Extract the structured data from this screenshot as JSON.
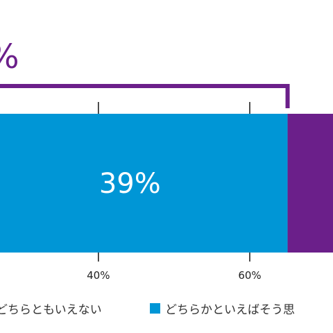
{
  "chart_data": {
    "type": "bar",
    "orientation": "horizontal-stacked",
    "xlim": [
      27,
      71
    ],
    "x_ticks": [
      {
        "value": 40,
        "label": "40%"
      },
      {
        "value": 60,
        "label": "60%"
      }
    ],
    "segments": [
      {
        "name": "どちらかといえばそう思う",
        "start": 26,
        "end": 65,
        "label": "39%",
        "color": "#0096d6"
      },
      {
        "name": "",
        "start": 65,
        "end": 72,
        "label": "",
        "color": "#6b1f8a"
      }
    ],
    "bracket": {
      "end": 65,
      "color": "#6b1f8a"
    },
    "total_label": "%",
    "legend": [
      {
        "label": "どちらともいえない",
        "color": "#ffffff",
        "show_swatch": false
      },
      {
        "label": "どちらかといえばそう思",
        "color": "#0096d6",
        "show_swatch": true
      }
    ],
    "grid": false
  }
}
